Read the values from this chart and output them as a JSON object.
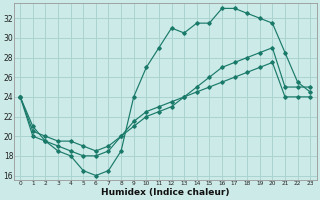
{
  "xlabel": "Humidex (Indice chaleur)",
  "xlim": [
    -0.5,
    23.5
  ],
  "ylim": [
    15.5,
    33.5
  ],
  "xticks": [
    0,
    1,
    2,
    3,
    4,
    5,
    6,
    7,
    8,
    9,
    10,
    11,
    12,
    13,
    14,
    15,
    16,
    17,
    18,
    19,
    20,
    21,
    22,
    23
  ],
  "yticks": [
    16,
    18,
    20,
    22,
    24,
    26,
    28,
    30,
    32
  ],
  "bg_color": "#cceae7",
  "grid_color": "#aad4d0",
  "line_color": "#1a7a6a",
  "line1_y": [
    24,
    21,
    19.5,
    18.5,
    18,
    16.5,
    16,
    16.5,
    18.5,
    24,
    27,
    29,
    31,
    30.5,
    31.5,
    31.5,
    33,
    33,
    32.5,
    32,
    31.5,
    28.5,
    25.5,
    24.5
  ],
  "line2_y": [
    24,
    20,
    19.5,
    19,
    18.5,
    18,
    18,
    18.5,
    20,
    21,
    22,
    22.5,
    23,
    24,
    25,
    26,
    27,
    27.5,
    28,
    28.5,
    29,
    25,
    25,
    25
  ],
  "line3_y": [
    24,
    20.5,
    20,
    19.5,
    19.5,
    19,
    18.5,
    19,
    20,
    21.5,
    22.5,
    23,
    23.5,
    24,
    24.5,
    25,
    25.5,
    26,
    26.5,
    27,
    27.5,
    24,
    24,
    24
  ]
}
